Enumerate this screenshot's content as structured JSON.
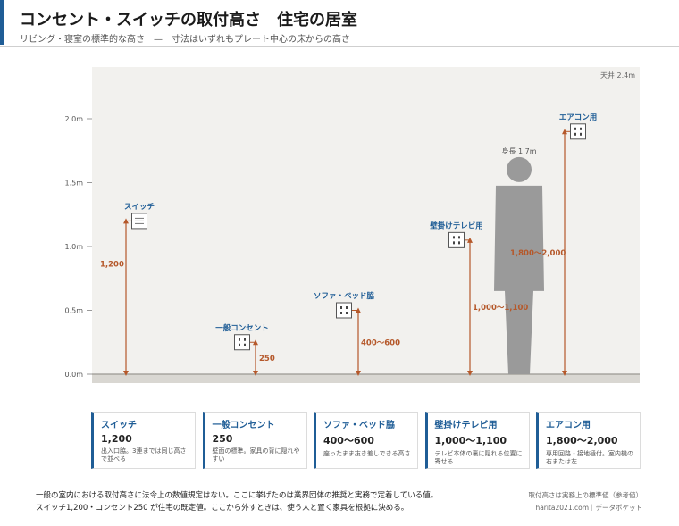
{
  "header": {
    "title": "コンセント・スイッチの取付高さ　住宅の居室",
    "subtitle": "リビング・寝室の標準的な高さ　—　寸法はいずれもプレート中心の床からの高さ"
  },
  "chart_data": {
    "type": "diagram",
    "unit": "m",
    "y_range": [
      0,
      2.4
    ],
    "y_ticks": [
      {
        "value": 0,
        "label": "0.0m"
      },
      {
        "value": 0.5,
        "label": "0.5m"
      },
      {
        "value": 1.0,
        "label": "1.0m"
      },
      {
        "value": 1.5,
        "label": "1.5m"
      },
      {
        "value": 2.0,
        "label": "2.0m"
      }
    ],
    "ceiling_label": "天井 2.4m",
    "person": {
      "height": 1.7,
      "label": "身長 1.7m"
    },
    "items": [
      {
        "name": "スイッチ",
        "height": 1.2,
        "dimension": "1,200",
        "icon": "switch-icon"
      },
      {
        "name": "一般コンセント",
        "height": 0.25,
        "dimension": "250",
        "icon": "outlet-icon"
      },
      {
        "name": "ソファ・ベッド脇",
        "height": 0.5,
        "dimension": "400〜600",
        "icon": "outlet-icon"
      },
      {
        "name": "壁掛けテレビ用",
        "height": 1.05,
        "dimension": "1,000〜1,100",
        "icon": "outlet-icon"
      },
      {
        "name": "エアコン用",
        "height": 1.9,
        "dimension": "1,800〜2,000",
        "icon": "aircon-outlet-icon"
      }
    ],
    "colors": {
      "accent": "#1f5d96",
      "dimension": "#b5582a",
      "person": "#9a9a9a",
      "floor": "#d9d7d2",
      "panel": "#f2f1ee"
    }
  },
  "cards": [
    {
      "name": "スイッチ",
      "value": "1,200",
      "desc": "出入口脇。3連までは同じ高さで並べる"
    },
    {
      "name": "一般コンセント",
      "value": "250",
      "desc": "壁面の標準。家具の背に隠れやすい"
    },
    {
      "name": "ソファ・ベッド脇",
      "value": "400〜600",
      "desc": "座ったまま抜き差しできる高さ"
    },
    {
      "name": "壁掛けテレビ用",
      "value": "1,000〜1,100",
      "desc": "テレビ本体の裏に隠れる位置に寄せる"
    },
    {
      "name": "エアコン用",
      "value": "1,800〜2,000",
      "desc": "専用回路・接地極付。室内機の右または左"
    }
  ],
  "footer": {
    "note_line1": "一般の室内における取付高さに法令上の数値規定はない。ここに挙げたのは業界団体の推奨と実務で定着している値。",
    "note_line2": "スイッチ1,200・コンセント250 が住宅の既定値。ここから外すときは、使う人と置く家具を根拠に決める。",
    "credit_line1": "取付高さは実務上の標準値（参考値）",
    "credit_line2": "harita2021.com｜データポケット"
  }
}
